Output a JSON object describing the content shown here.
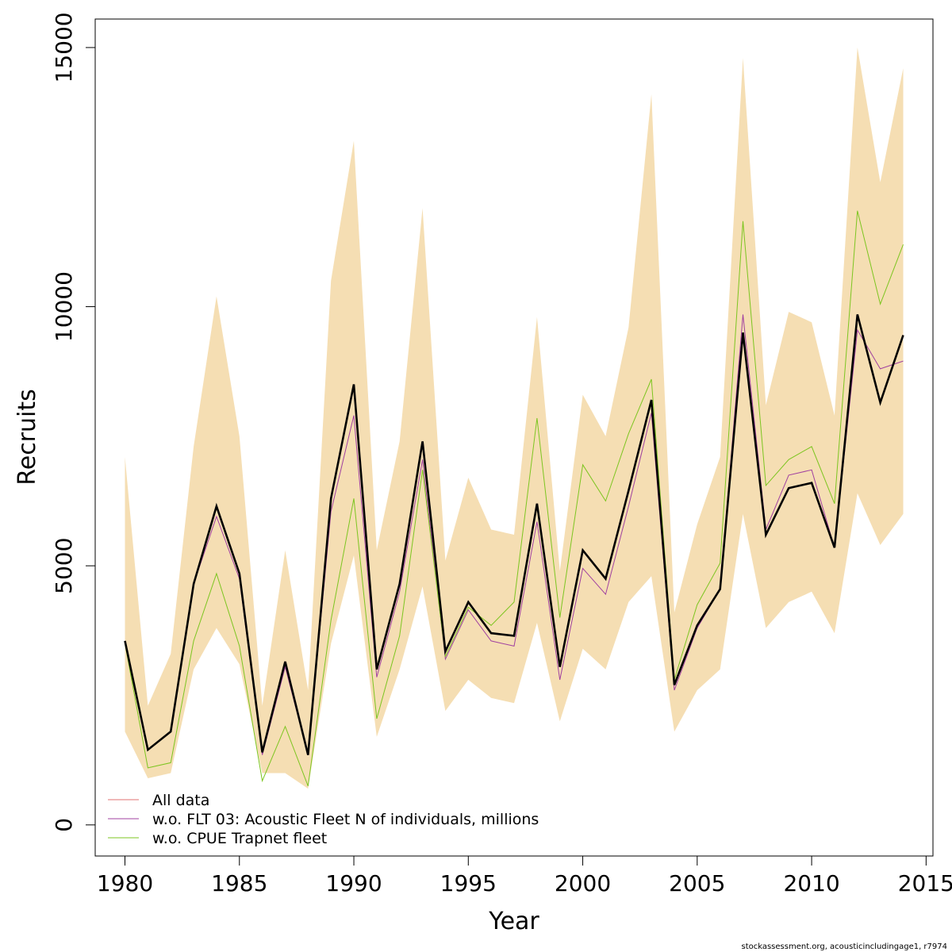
{
  "chart_data": {
    "type": "line",
    "xlabel": "Year",
    "ylabel": "Recruits",
    "xlim": [
      1978.7,
      2015.3
    ],
    "ylim": [
      -600,
      15550
    ],
    "x_ticks": [
      1980,
      1985,
      1990,
      1995,
      2000,
      2005,
      2010,
      2015
    ],
    "y_ticks": [
      0,
      5000,
      10000,
      15000
    ],
    "x": [
      1980,
      1981,
      1982,
      1983,
      1984,
      1985,
      1986,
      1987,
      1988,
      1989,
      1990,
      1991,
      1992,
      1993,
      1994,
      1995,
      1996,
      1997,
      1998,
      1999,
      2000,
      2001,
      2002,
      2003,
      2004,
      2005,
      2006,
      2007,
      2008,
      2009,
      2010,
      2011,
      2012,
      2013,
      2014
    ],
    "band": {
      "color": "#f5deb3",
      "upper": [
        7100,
        2300,
        3300,
        7300,
        10200,
        7500,
        2300,
        5300,
        2600,
        10500,
        13200,
        5300,
        7400,
        11900,
        5100,
        6700,
        5700,
        5600,
        9800,
        4900,
        8300,
        7500,
        9600,
        14100,
        4100,
        5800,
        7100,
        14800,
        8100,
        9900,
        9700,
        7900,
        15000,
        12400,
        14600
      ],
      "lower": [
        1800,
        900,
        1000,
        3000,
        3800,
        3100,
        1000,
        1000,
        700,
        3500,
        5200,
        1700,
        3000,
        4600,
        2200,
        2800,
        2450,
        2350,
        3900,
        2000,
        3400,
        3000,
        4300,
        4800,
        1800,
        2600,
        3000,
        6000,
        3800,
        4300,
        4500,
        3700,
        6400,
        5400,
        6000
      ]
    },
    "series": [
      {
        "name": "All data",
        "color": "#e07070",
        "width": 1,
        "values": [
          3550,
          1450,
          1800,
          4650,
          6150,
          4850,
          1400,
          3150,
          1350,
          6300,
          8500,
          3000,
          4650,
          7400,
          3350,
          4300,
          3700,
          3650,
          6200,
          3050,
          5300,
          4750,
          6450,
          8200,
          2700,
          3850,
          4550,
          9500,
          5600,
          6500,
          6600,
          5350,
          9850,
          8150,
          9450
        ]
      },
      {
        "name": "w.o. FLT 03: Acoustic Fleet   N of individuals, millions",
        "color": "#a040a0",
        "width": 1,
        "values": [
          3550,
          1450,
          1800,
          4650,
          5950,
          4750,
          1350,
          3050,
          1350,
          6050,
          7900,
          2850,
          4500,
          7050,
          3200,
          4150,
          3550,
          3450,
          5850,
          2800,
          4950,
          4450,
          6150,
          7950,
          2600,
          3800,
          4550,
          9850,
          5700,
          6750,
          6850,
          5350,
          9550,
          8800,
          8950
        ]
      },
      {
        "name": "w.o. CPUE Trapnet fleet",
        "color": "#7cc520",
        "width": 1,
        "values": [
          3500,
          1100,
          1200,
          3550,
          4850,
          3450,
          850,
          1900,
          750,
          3950,
          6300,
          2050,
          3650,
          6850,
          3250,
          4200,
          3850,
          4300,
          7850,
          4000,
          6950,
          6250,
          7550,
          8600,
          2800,
          4250,
          5050,
          11650,
          6550,
          7050,
          7300,
          6200,
          11850,
          10050,
          11200
        ]
      },
      {
        "name": "",
        "color": "#000000",
        "width": 2.6,
        "values": [
          3550,
          1450,
          1800,
          4650,
          6150,
          4850,
          1400,
          3150,
          1350,
          6300,
          8500,
          3000,
          4650,
          7400,
          3350,
          4300,
          3700,
          3650,
          6200,
          3050,
          5300,
          4750,
          6450,
          8200,
          2700,
          3850,
          4550,
          9500,
          5600,
          6500,
          6600,
          5350,
          9850,
          8150,
          9450
        ]
      }
    ],
    "legend": {
      "position": "bottom-left",
      "entries": [
        {
          "label": "All data",
          "color": "#e07070"
        },
        {
          "label": "w.o. FLT 03: Acoustic Fleet   N of individuals, millions",
          "color": "#a040a0"
        },
        {
          "label": "w.o. CPUE Trapnet fleet",
          "color": "#7cc520"
        }
      ]
    },
    "credit": "stockassessment.org, acousticincludingage1, r7974"
  }
}
